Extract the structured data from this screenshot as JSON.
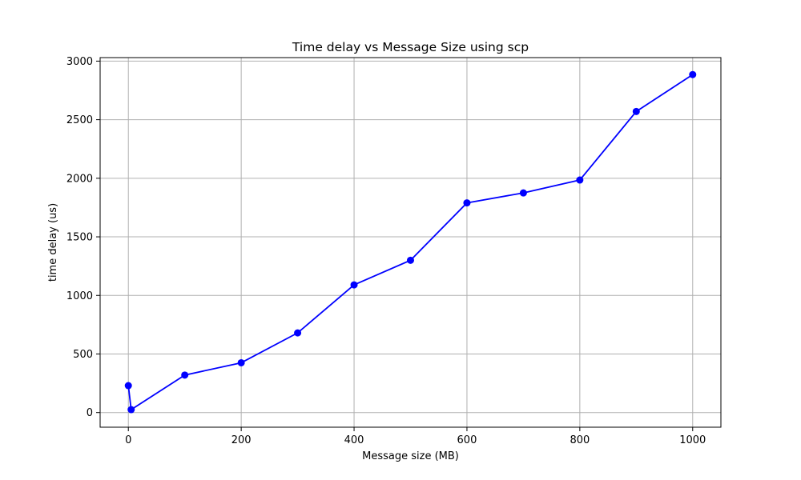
{
  "chart_data": {
    "type": "line",
    "title": "Time delay vs Message Size using scp",
    "xlabel": "Message size (MB)",
    "ylabel": "time delay (us)",
    "xlim": [
      -50,
      1050
    ],
    "ylim": [
      -125,
      3030
    ],
    "x_ticks": [
      0,
      200,
      400,
      600,
      800,
      1000
    ],
    "y_ticks": [
      0,
      500,
      1000,
      1500,
      2000,
      2500,
      3000
    ],
    "grid": true,
    "series": [
      {
        "x": [
          0,
          5,
          100,
          200,
          300,
          400,
          500,
          600,
          700,
          800,
          900,
          1000
        ],
        "y": [
          230,
          25,
          320,
          425,
          680,
          1090,
          1300,
          1790,
          1875,
          1985,
          2570,
          2885
        ],
        "color": "#0000ff",
        "marker": "circle"
      }
    ]
  }
}
